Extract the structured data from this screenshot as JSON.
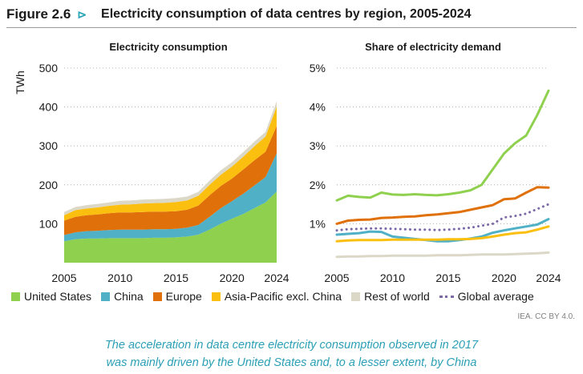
{
  "header": {
    "figure_label": "Figure 2.6",
    "arrow": "⊳",
    "title": "Electricity consumption of data centres by region, 2005-2024"
  },
  "colors": {
    "united_states": "#8fd14f",
    "china": "#4fb0c6",
    "europe": "#e0700a",
    "asia_pacific": "#fbbf10",
    "rest_of_world": "#dcd8c8",
    "global_average": "#7c6aa8",
    "gridline": "#b0b0b0"
  },
  "chart_data": [
    {
      "type": "area",
      "title": "Electricity consumption",
      "ylabel": "TWh",
      "xlabel": "",
      "stacked": true,
      "ylim": [
        0,
        500
      ],
      "yticks": [
        100,
        200,
        300,
        400,
        500
      ],
      "xticks": [
        2005,
        2010,
        2015,
        2020,
        2024
      ],
      "grid": "horizontal dotted",
      "x": [
        2005,
        2006,
        2007,
        2008,
        2009,
        2010,
        2011,
        2012,
        2013,
        2014,
        2015,
        2016,
        2017,
        2018,
        2019,
        2020,
        2021,
        2022,
        2023,
        2024
      ],
      "series": [
        {
          "name": "United States",
          "key": "united_states",
          "values": [
            55,
            60,
            62,
            62,
            63,
            63,
            63,
            63,
            64,
            64,
            65,
            67,
            72,
            85,
            100,
            113,
            125,
            140,
            155,
            183
          ]
        },
        {
          "name": "China",
          "key": "china",
          "values": [
            16,
            18,
            19,
            20,
            21,
            22,
            22,
            22,
            22,
            22,
            22,
            23,
            25,
            33,
            40,
            45,
            52,
            58,
            65,
            98
          ]
        },
        {
          "name": "Europe",
          "key": "europe",
          "values": [
            37,
            40,
            41,
            42,
            43,
            44,
            44,
            45,
            45,
            45,
            45,
            46,
            50,
            55,
            57,
            58,
            62,
            65,
            65,
            70
          ]
        },
        {
          "name": "Asia-Pacific excl. China",
          "key": "asia_pacific",
          "values": [
            14,
            17,
            17,
            18,
            19,
            20,
            21,
            22,
            22,
            23,
            24,
            24,
            25,
            27,
            29,
            31,
            33,
            36,
            39,
            50
          ]
        },
        {
          "name": "Rest of world",
          "key": "rest_of_world",
          "values": [
            8,
            8,
            9,
            9,
            9,
            10,
            10,
            10,
            10,
            10,
            10,
            10,
            10,
            11,
            11,
            11,
            12,
            12,
            12,
            14
          ]
        }
      ]
    },
    {
      "type": "line",
      "title": "Share of electricity demand",
      "ylabel": "",
      "xlabel": "",
      "ylim": [
        0,
        5
      ],
      "yticks": [
        "1%",
        "2%",
        "3%",
        "4%",
        "5%"
      ],
      "ytick_values": [
        1,
        2,
        3,
        4,
        5
      ],
      "xticks": [
        2005,
        2010,
        2015,
        2020,
        2024
      ],
      "grid": "horizontal dotted",
      "x": [
        2005,
        2006,
        2007,
        2008,
        2009,
        2010,
        2011,
        2012,
        2013,
        2014,
        2015,
        2016,
        2017,
        2018,
        2019,
        2020,
        2021,
        2022,
        2023,
        2024
      ],
      "series": [
        {
          "name": "United States",
          "key": "united_states",
          "style": "solid",
          "values": [
            1.6,
            1.72,
            1.69,
            1.67,
            1.8,
            1.75,
            1.74,
            1.76,
            1.74,
            1.73,
            1.76,
            1.8,
            1.86,
            2.0,
            2.4,
            2.8,
            3.07,
            3.27,
            3.8,
            4.42
          ]
        },
        {
          "name": "China",
          "key": "china",
          "style": "solid",
          "values": [
            0.72,
            0.74,
            0.76,
            0.8,
            0.79,
            0.67,
            0.64,
            0.61,
            0.58,
            0.55,
            0.55,
            0.58,
            0.62,
            0.67,
            0.77,
            0.83,
            0.88,
            0.93,
            0.98,
            1.12
          ]
        },
        {
          "name": "Europe",
          "key": "europe",
          "style": "solid",
          "values": [
            1.0,
            1.08,
            1.1,
            1.11,
            1.15,
            1.16,
            1.18,
            1.19,
            1.22,
            1.24,
            1.27,
            1.3,
            1.36,
            1.42,
            1.48,
            1.63,
            1.65,
            1.8,
            1.94,
            1.93
          ]
        },
        {
          "name": "Asia-Pacific excl. China",
          "key": "asia_pacific",
          "style": "solid",
          "values": [
            0.55,
            0.57,
            0.58,
            0.58,
            0.58,
            0.59,
            0.59,
            0.59,
            0.59,
            0.59,
            0.6,
            0.6,
            0.61,
            0.63,
            0.67,
            0.72,
            0.76,
            0.78,
            0.85,
            0.93
          ]
        },
        {
          "name": "Rest of world",
          "key": "rest_of_world",
          "style": "solid",
          "values": [
            0.15,
            0.16,
            0.16,
            0.17,
            0.17,
            0.18,
            0.18,
            0.18,
            0.18,
            0.19,
            0.19,
            0.19,
            0.2,
            0.21,
            0.21,
            0.21,
            0.22,
            0.23,
            0.24,
            0.26
          ]
        },
        {
          "name": "Global average",
          "key": "global_average",
          "style": "dotted",
          "values": [
            0.83,
            0.86,
            0.87,
            0.88,
            0.88,
            0.87,
            0.86,
            0.85,
            0.85,
            0.84,
            0.85,
            0.87,
            0.9,
            0.95,
            1.0,
            1.16,
            1.2,
            1.26,
            1.38,
            1.5
          ]
        }
      ]
    }
  ],
  "legend": [
    {
      "name": "United States",
      "key": "united_states",
      "marker": "square"
    },
    {
      "name": "China",
      "key": "china",
      "marker": "square"
    },
    {
      "name": "Europe",
      "key": "europe",
      "marker": "square"
    },
    {
      "name": "Asia-Pacific excl. China",
      "key": "asia_pacific",
      "marker": "square"
    },
    {
      "name": "Rest of world",
      "key": "rest_of_world",
      "marker": "square"
    },
    {
      "name": "Global average",
      "key": "global_average",
      "marker": "dots"
    }
  ],
  "source": "IEA. CC BY 4.0.",
  "caption": {
    "line1": "The acceleration in data centre electricity consumption observed in 2017",
    "line2": "was mainly driven by the United States and, to a lesser extent, by China"
  }
}
